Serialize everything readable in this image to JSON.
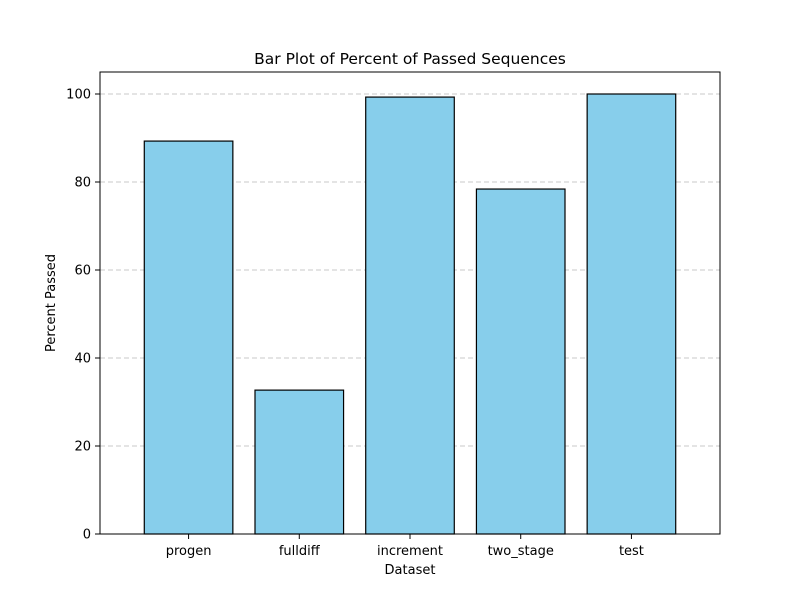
{
  "chart_data": {
    "type": "bar",
    "title": "Bar Plot of Percent of Passed Sequences",
    "xlabel": "Dataset",
    "ylabel": "Percent Passed",
    "categories": [
      "progen",
      "fulldiff",
      "increment",
      "two_stage",
      "test"
    ],
    "values": [
      89.3,
      32.7,
      99.3,
      78.4,
      100.0
    ],
    "ylim": [
      0,
      105
    ],
    "yticks": [
      0,
      20,
      40,
      60,
      80,
      100
    ],
    "grid": "y-dashed",
    "legend": "none",
    "colors": {
      "bar_fill": "#87ceeb",
      "bar_edge": "#000000",
      "grid": "#c8c8c8"
    }
  }
}
